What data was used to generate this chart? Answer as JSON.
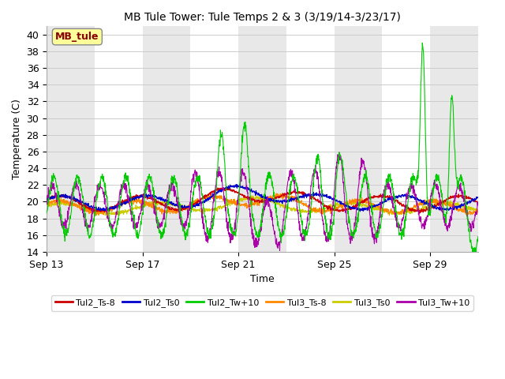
{
  "title": "MB Tule Tower: Tule Temps 2 & 3 (3/19/14-3/23/17)",
  "xlabel": "Time",
  "ylabel": "Temperature (C)",
  "ylim": [
    14,
    41
  ],
  "yticks": [
    14,
    16,
    18,
    20,
    22,
    24,
    26,
    28,
    30,
    32,
    34,
    36,
    38,
    40
  ],
  "legend_label": "MB_tule",
  "legend_text_color": "#880000",
  "legend_box_color": "#ffff99",
  "line_colors": {
    "Tul2_Ts-8": "#cc0000",
    "Tul2_Ts0": "#0000cc",
    "Tul2_Tw+10": "#00cc00",
    "Tul3_Ts-8": "#ff8800",
    "Tul3_Ts0": "#cccc00",
    "Tul3_Tw+10": "#aa00aa"
  },
  "background_color": "#ffffff",
  "grid_color": "#cccccc",
  "shading_color": "#e8e8e8",
  "figsize": [
    6.4,
    4.8
  ],
  "dpi": 100
}
